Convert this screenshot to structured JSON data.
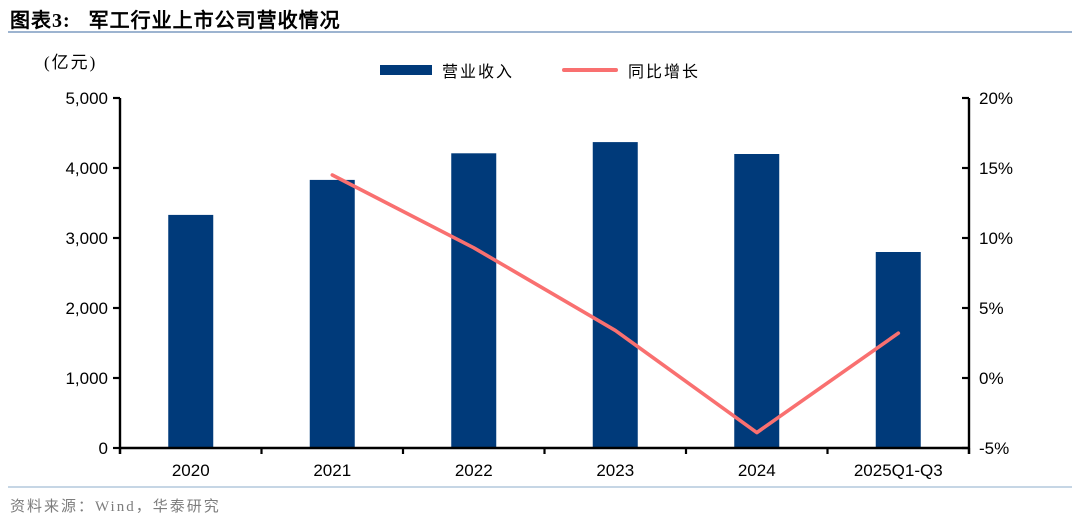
{
  "figure": {
    "label": "图表3:",
    "title": "军工行业上市公司营收情况",
    "unit_label": "(亿元)",
    "source": "资料来源：Wind，华泰研究"
  },
  "legend": {
    "items": [
      {
        "label": "营业收入",
        "marker": "bar-swatch"
      },
      {
        "label": "同比增长",
        "marker": "line-swatch"
      }
    ]
  },
  "colors": {
    "bar": "#003a7a",
    "line": "#f97070",
    "axis": "#000000",
    "tick_text": "#000000",
    "title_rule": "#9db4d0",
    "footer_rule": "#c6d6e5",
    "source_text": "#7d7d7d"
  },
  "chart_data": {
    "type": "bar+line",
    "categories": [
      "2020",
      "2021",
      "2022",
      "2023",
      "2024",
      "2025Q1-Q3"
    ],
    "series": [
      {
        "name": "营业收入",
        "type": "bar",
        "axis": "left",
        "unit": "亿元",
        "values": [
          3330,
          3830,
          4210,
          4370,
          4200,
          2800
        ]
      },
      {
        "name": "同比增长",
        "type": "line",
        "axis": "right",
        "unit": "%",
        "values": [
          null,
          14.5,
          9.3,
          3.4,
          -3.9,
          3.2
        ]
      }
    ],
    "left_axis": {
      "unit": "(亿元)",
      "min": 0,
      "max": 5000,
      "step": 1000,
      "tick_labels": [
        "0",
        "1,000",
        "2,000",
        "3,000",
        "4,000",
        "5,000"
      ]
    },
    "right_axis": {
      "min": -5,
      "max": 20,
      "step": 5,
      "tick_labels": [
        "-5%",
        "0%",
        "5%",
        "10%",
        "15%",
        "20%"
      ]
    },
    "grid": false,
    "legend_position": "top-center"
  }
}
